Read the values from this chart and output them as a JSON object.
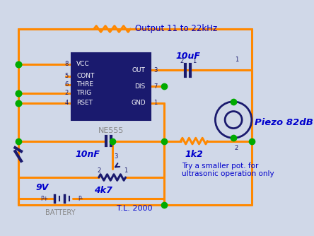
{
  "bg_color": "#d0d8e8",
  "wire_color": "#ff8800",
  "ic_fill": "#1a1a6e",
  "ic_text_color": "white",
  "blue_text": "#0000cc",
  "dark_blue": "#1a1a6e",
  "green_dot": "#00aa00",
  "gray_text": "#888888",
  "title": "Output 11 to 22kHz",
  "subtitle": "T.L. 2000",
  "battery_label": "BATTERY",
  "battery_v": "9V",
  "cap1_label": "10nF",
  "cap2_label": "10uF",
  "res1_label": "1k2",
  "res2_label": "4k7",
  "piezo_label": "Piezo 82dB",
  "note": "Try a smaller pot. for\nultrasonic operation only",
  "ic_name": "NE555"
}
